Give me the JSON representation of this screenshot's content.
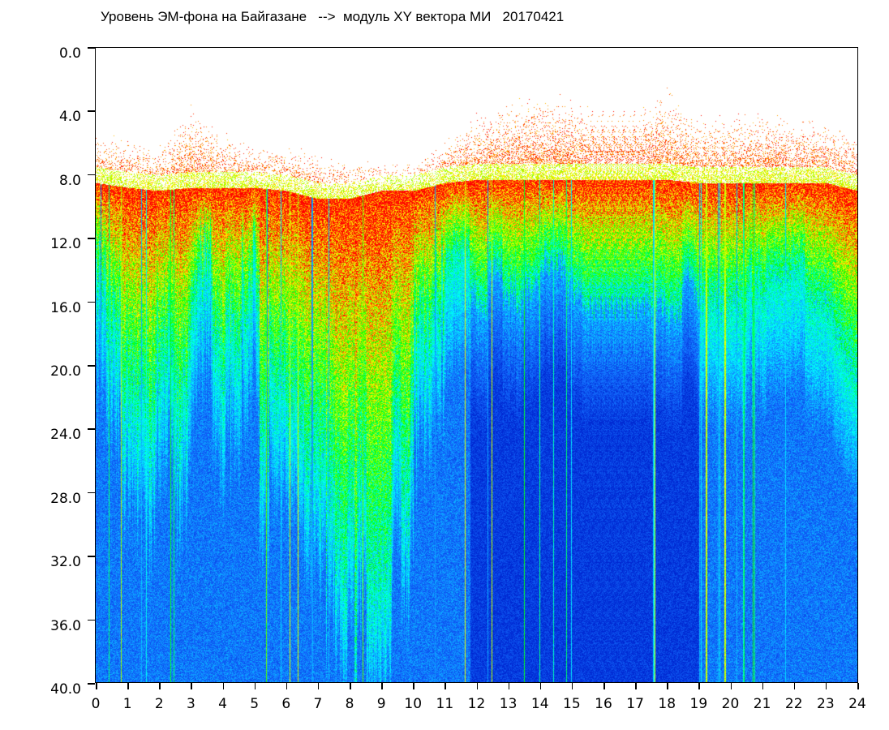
{
  "chart_data": {
    "type": "heatmap",
    "title": "Уровень ЭМ-фона на Байгазане   -->  модуль XY вектора МИ   20170421",
    "xlim": [
      0,
      24
    ],
    "ylim": [
      0,
      40
    ],
    "y_inverted": true,
    "x_ticks": [
      "0",
      "1",
      "2",
      "3",
      "4",
      "5",
      "6",
      "7",
      "8",
      "9",
      "10",
      "11",
      "12",
      "13",
      "14",
      "15",
      "16",
      "17",
      "18",
      "19",
      "20",
      "21",
      "22",
      "23",
      "24"
    ],
    "y_ticks": [
      "0.0",
      "4.0",
      "8.0",
      "12.0",
      "16.0",
      "20.0",
      "24.0",
      "28.0",
      "32.0",
      "36.0",
      "40.0"
    ],
    "colorscale": [
      "#ffffff",
      "#ff0000",
      "#ffff00",
      "#00ff00",
      "#00ffff",
      "#1060ff",
      "#0020c0"
    ],
    "approx_hourly_profile": {
      "hours": [
        0,
        1,
        2,
        3,
        4,
        5,
        6,
        7,
        8,
        9,
        10,
        11,
        12,
        13,
        14,
        15,
        16,
        17,
        18,
        19,
        20,
        21,
        22,
        23,
        24
      ],
      "scatter_top_level": [
        5,
        5.5,
        6,
        3,
        5,
        6,
        6,
        6.5,
        7,
        7,
        7,
        5.5,
        4,
        3,
        2.5,
        2.8,
        3,
        3,
        2.2,
        4,
        3.8,
        3.8,
        4,
        4,
        5
      ],
      "dense_band_start": [
        8.5,
        8.8,
        9,
        8.8,
        8.8,
        8.8,
        9,
        9.5,
        9.5,
        9,
        9,
        8.5,
        8.3,
        8.3,
        8.3,
        8.3,
        8.3,
        8.3,
        8.3,
        8.5,
        8.5,
        8.5,
        8.5,
        8.5,
        9
      ],
      "blue_transition_level": [
        15,
        17,
        20,
        17,
        15,
        17,
        24,
        28,
        30,
        28,
        19,
        14,
        14,
        14,
        14,
        14,
        14,
        14,
        14,
        14.5,
        15,
        15,
        15,
        15,
        19
      ]
    }
  }
}
